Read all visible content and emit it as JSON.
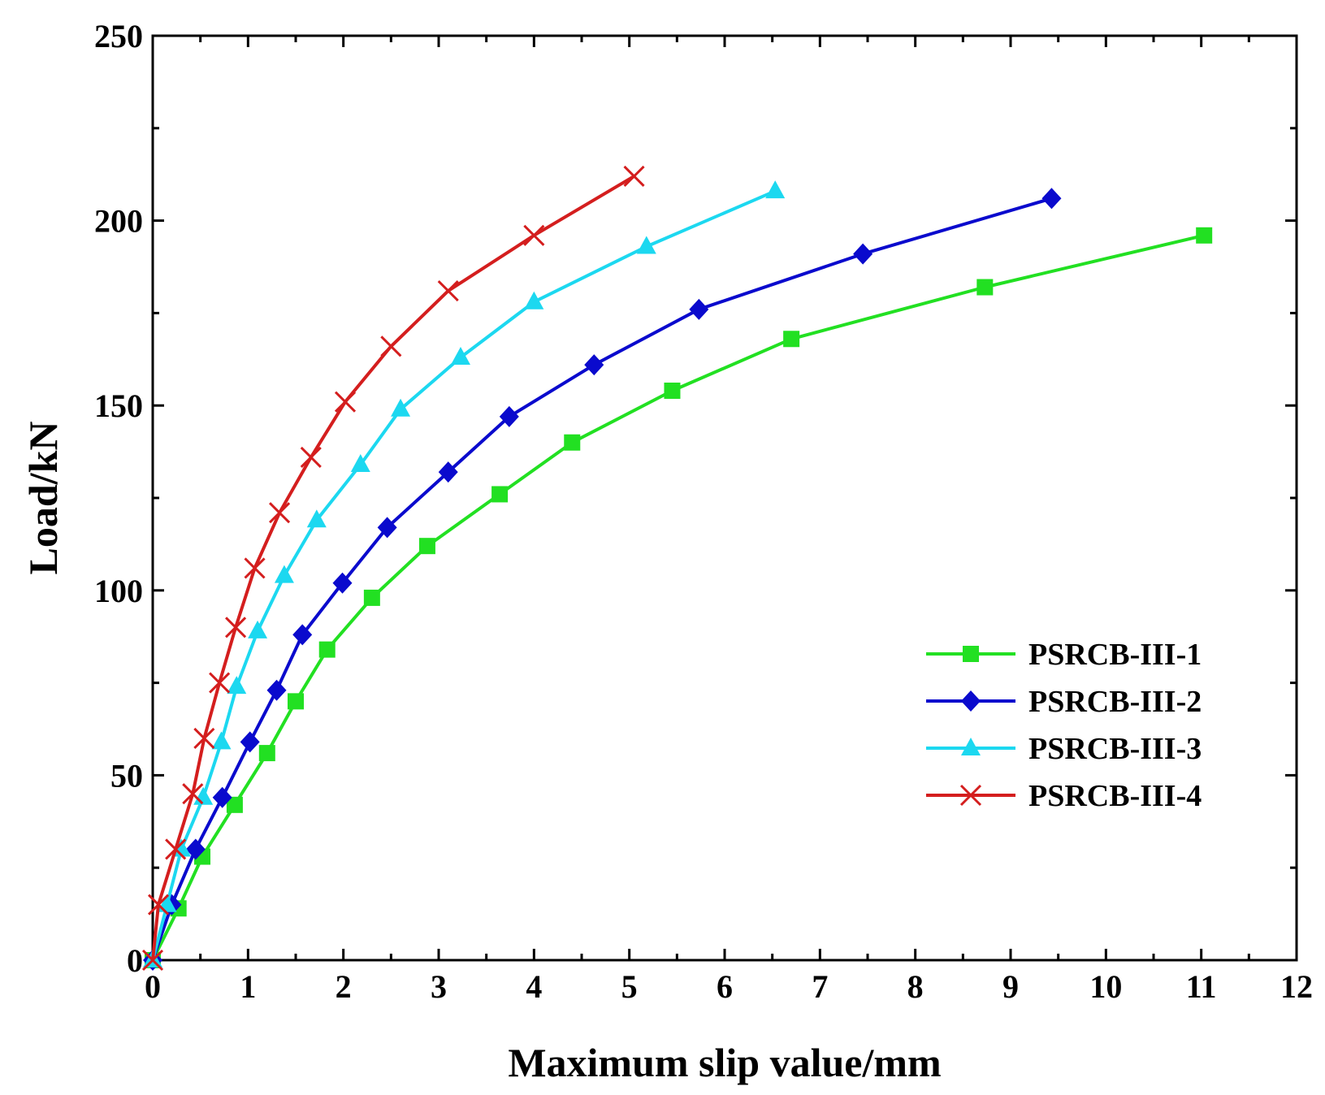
{
  "chart_data": {
    "type": "line",
    "title": "",
    "xlabel": "Maximum slip value/mm",
    "ylabel": "Load/kN",
    "xlim": [
      0,
      12
    ],
    "ylim": [
      0,
      250
    ],
    "xticks": [
      0,
      1,
      2,
      3,
      4,
      5,
      6,
      7,
      8,
      9,
      10,
      11,
      12
    ],
    "yticks": [
      0,
      50,
      100,
      150,
      200,
      250
    ],
    "xtick_labels": [
      "0",
      "1",
      "2",
      "3",
      "4",
      "5",
      "6",
      "7",
      "8",
      "9",
      "10",
      "11",
      "12"
    ],
    "ytick_labels": [
      "0",
      "50",
      "100",
      "150",
      "200",
      "250"
    ],
    "grid": false,
    "legend_position": "right",
    "series": [
      {
        "name": "PSRCB-III-1",
        "color": "#22e022",
        "marker": "square",
        "x": [
          0,
          0.27,
          0.52,
          0.86,
          1.2,
          1.5,
          1.83,
          2.3,
          2.88,
          3.64,
          4.4,
          5.45,
          6.7,
          8.73,
          11.03
        ],
        "y": [
          0,
          14,
          28,
          42,
          56,
          70,
          84,
          98,
          112,
          126,
          140,
          154,
          168,
          182,
          196
        ]
      },
      {
        "name": "PSRCB-III-2",
        "color": "#0a0acd",
        "marker": "diamond",
        "x": [
          0,
          0.2,
          0.45,
          0.73,
          1.02,
          1.3,
          1.57,
          1.99,
          2.46,
          3.1,
          3.74,
          4.63,
          5.73,
          7.45,
          9.43
        ],
        "y": [
          0,
          15,
          30,
          44,
          59,
          73,
          88,
          102,
          117,
          132,
          147,
          161,
          176,
          191,
          206
        ]
      },
      {
        "name": "PSRCB-III-3",
        "color": "#1cd8f0",
        "marker": "triangle",
        "x": [
          0,
          0.15,
          0.3,
          0.53,
          0.72,
          0.88,
          1.1,
          1.38,
          1.72,
          2.18,
          2.6,
          3.23,
          4.0,
          5.18,
          6.53
        ],
        "y": [
          0,
          15,
          30,
          44,
          59,
          74,
          89,
          104,
          119,
          134,
          149,
          163,
          178,
          193,
          208
        ]
      },
      {
        "name": "PSRCB-III-4",
        "color": "#d41e1e",
        "marker": "x",
        "x": [
          0,
          0.06,
          0.24,
          0.42,
          0.54,
          0.7,
          0.87,
          1.07,
          1.33,
          1.66,
          2.02,
          2.5,
          3.1,
          4.0,
          5.05
        ],
        "y": [
          0,
          15,
          30,
          45,
          60,
          75,
          90,
          106,
          121,
          136,
          151,
          166,
          181,
          196,
          212
        ]
      }
    ]
  }
}
